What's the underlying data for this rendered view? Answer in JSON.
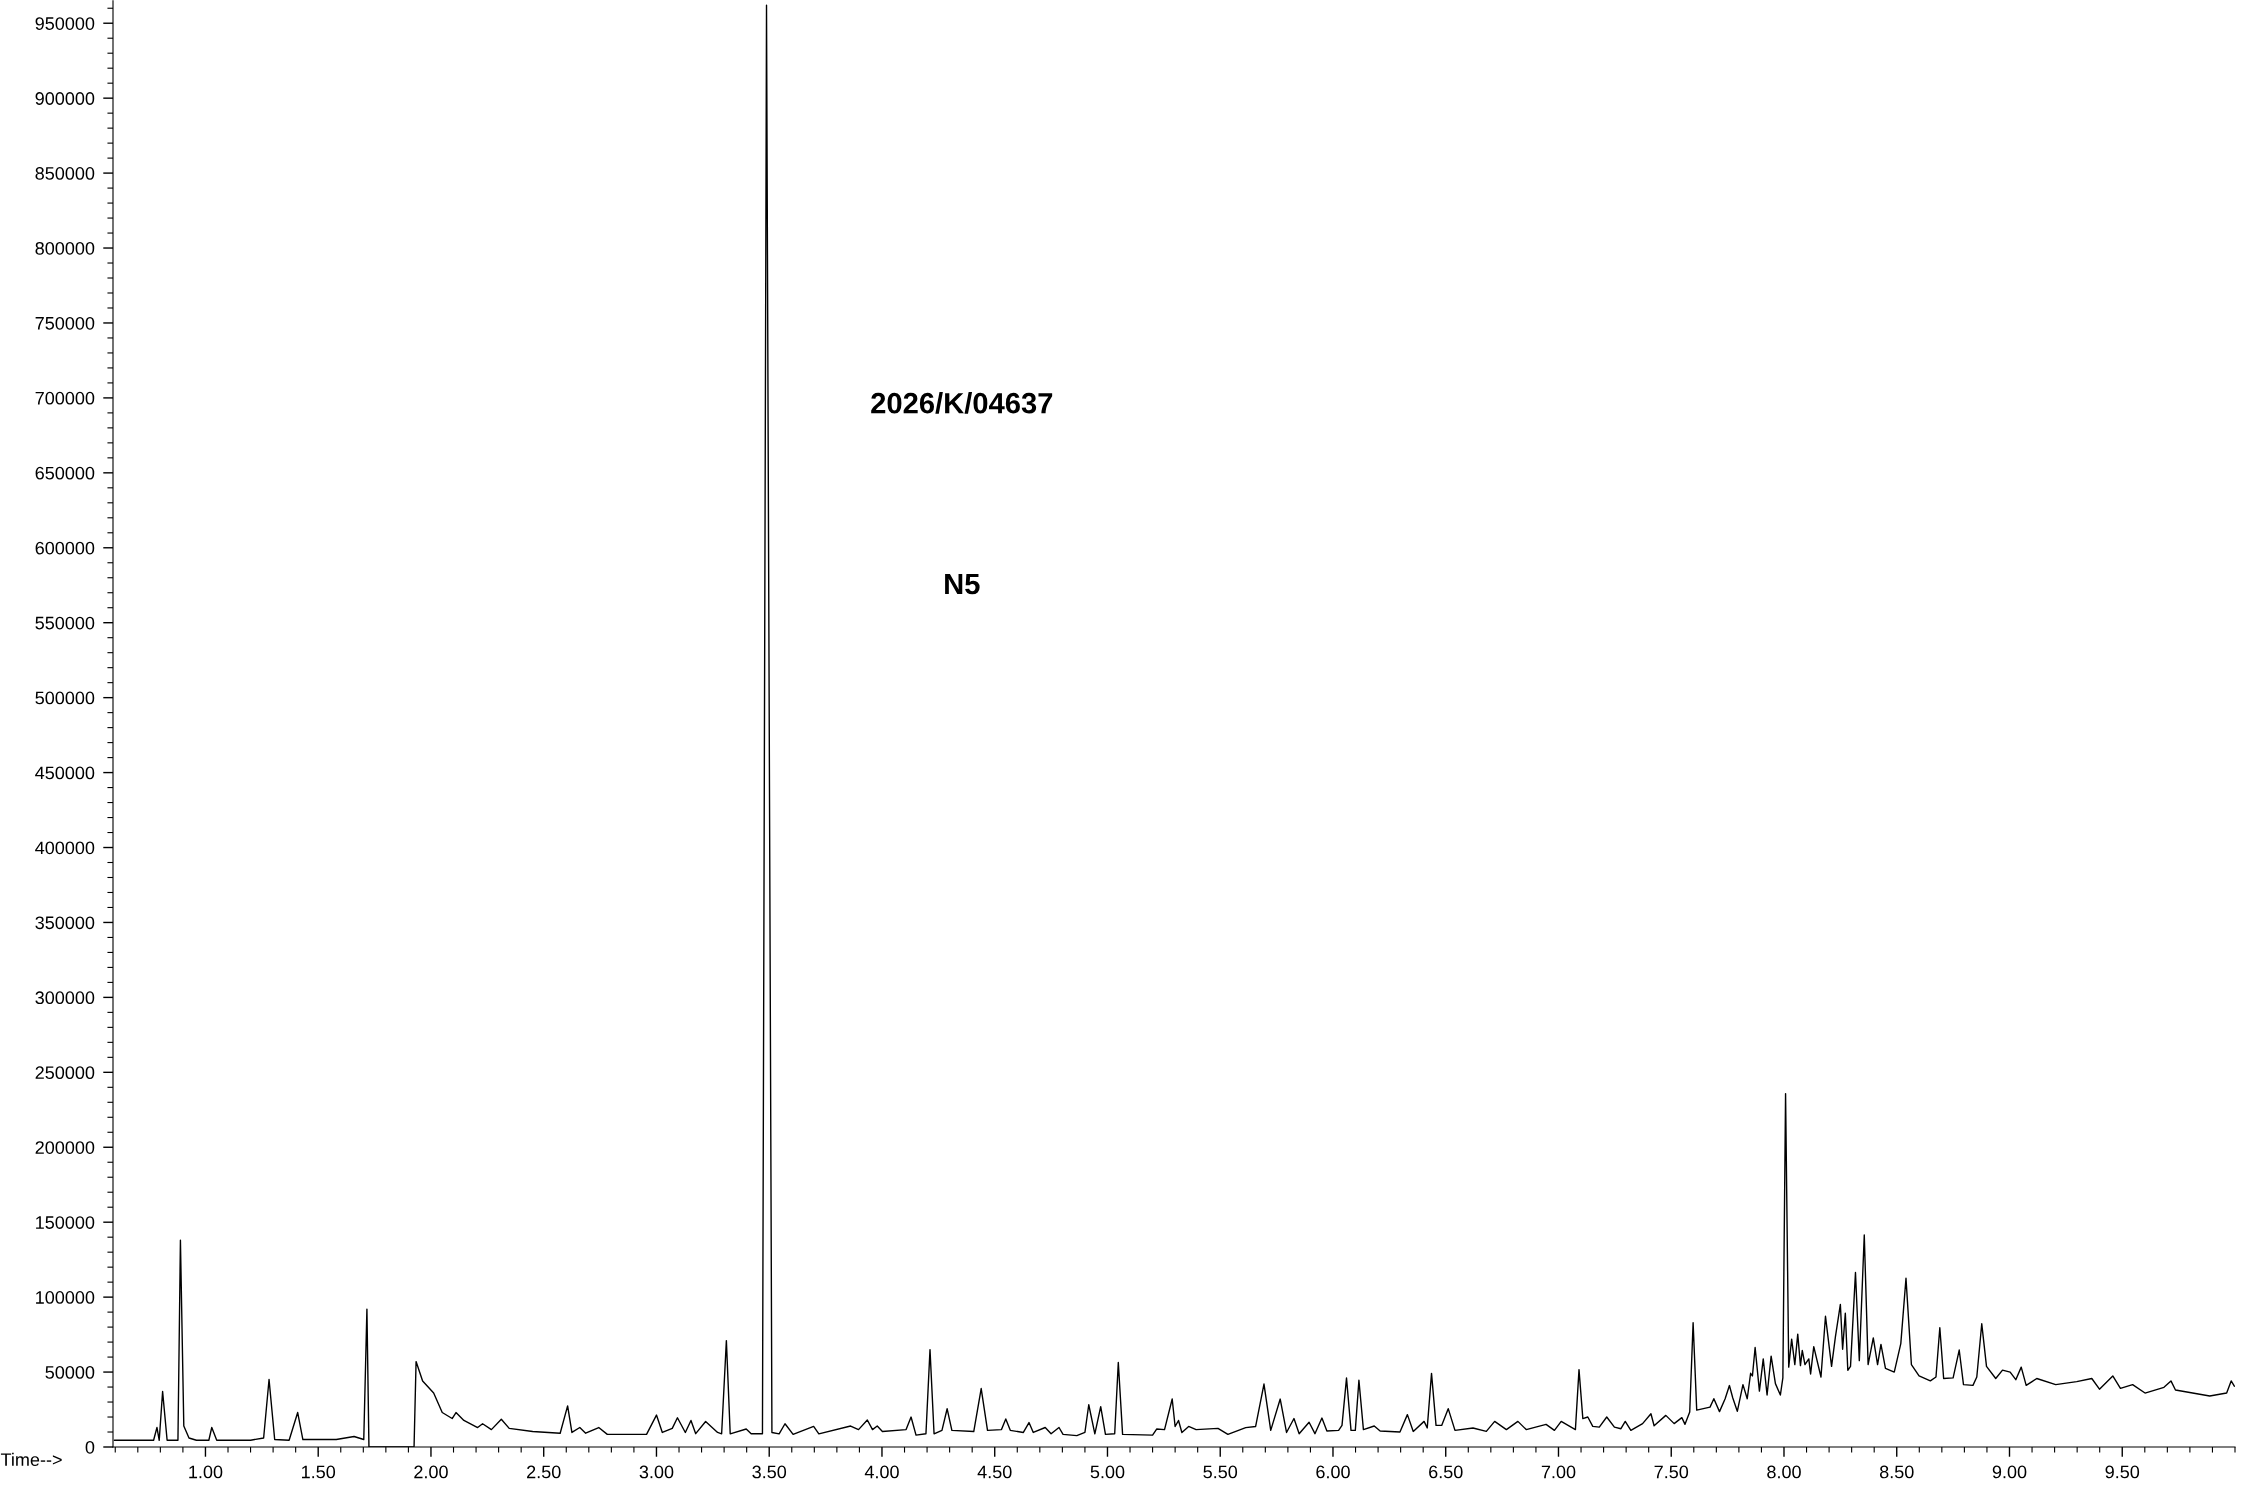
{
  "chart_data": {
    "type": "line",
    "xlabel": "Time-->",
    "annotations": [
      "2026/K/04637",
      "N5"
    ],
    "xlim": [
      0.59,
      10.0
    ],
    "ylim": [
      0,
      965000
    ],
    "xticks": [
      {
        "value": 1.0,
        "label": "1.00"
      },
      {
        "value": 1.5,
        "label": "1.50"
      },
      {
        "value": 2.0,
        "label": "2.00"
      },
      {
        "value": 2.5,
        "label": "2.50"
      },
      {
        "value": 3.0,
        "label": "3.00"
      },
      {
        "value": 3.5,
        "label": "3.50"
      },
      {
        "value": 4.0,
        "label": "4.00"
      },
      {
        "value": 4.5,
        "label": "4.50"
      },
      {
        "value": 5.0,
        "label": "5.00"
      },
      {
        "value": 5.5,
        "label": "5.50"
      },
      {
        "value": 6.0,
        "label": "6.00"
      },
      {
        "value": 6.5,
        "label": "6.50"
      },
      {
        "value": 7.0,
        "label": "7.00"
      },
      {
        "value": 7.5,
        "label": "7.50"
      },
      {
        "value": 8.0,
        "label": "8.00"
      },
      {
        "value": 8.5,
        "label": "8.50"
      },
      {
        "value": 9.0,
        "label": "9.00"
      },
      {
        "value": 9.5,
        "label": "9.50"
      }
    ],
    "yticks": [
      0,
      50000,
      100000,
      150000,
      200000,
      250000,
      300000,
      350000,
      400000,
      450000,
      500000,
      550000,
      600000,
      650000,
      700000,
      750000,
      800000,
      850000,
      900000,
      950000
    ],
    "grid": false,
    "marker": "none",
    "line_style": "solid",
    "series": [
      {
        "color": "#000000",
        "x": [
          0.596,
          0.77,
          0.785,
          0.795,
          0.81,
          0.83,
          0.878,
          0.889,
          0.904,
          0.927,
          0.96,
          1.015,
          1.028,
          1.05,
          1.2,
          1.258,
          1.282,
          1.307,
          1.371,
          1.409,
          1.432,
          1.58,
          1.659,
          1.702,
          1.716,
          1.725,
          1.925,
          1.934,
          1.963,
          2.012,
          2.05,
          2.094,
          2.111,
          2.146,
          2.207,
          2.229,
          2.268,
          2.312,
          2.347,
          2.451,
          2.573,
          2.606,
          2.625,
          2.66,
          2.686,
          2.744,
          2.782,
          2.956,
          3.0,
          3.026,
          3.07,
          3.093,
          3.128,
          3.153,
          3.174,
          3.218,
          3.271,
          3.289,
          3.31,
          3.327,
          3.398,
          3.42,
          3.47,
          3.488,
          3.512,
          3.544,
          3.57,
          3.606,
          3.697,
          3.72,
          3.861,
          3.896,
          3.935,
          3.958,
          3.979,
          4.002,
          4.107,
          4.129,
          4.151,
          4.195,
          4.213,
          4.231,
          4.266,
          4.289,
          4.31,
          4.407,
          4.44,
          4.468,
          4.53,
          4.549,
          4.569,
          4.627,
          4.652,
          4.671,
          4.724,
          4.75,
          4.785,
          4.803,
          4.864,
          4.9,
          4.917,
          4.944,
          4.97,
          4.991,
          5.032,
          5.048,
          5.067,
          5.2,
          5.218,
          5.253,
          5.287,
          5.3,
          5.315,
          5.33,
          5.36,
          5.393,
          5.49,
          5.534,
          5.613,
          5.657,
          5.694,
          5.724,
          5.766,
          5.794,
          5.827,
          5.85,
          5.894,
          5.92,
          5.951,
          5.973,
          6.025,
          6.04,
          6.06,
          6.08,
          6.099,
          6.115,
          6.135,
          6.183,
          6.209,
          6.297,
          6.33,
          6.356,
          6.404,
          6.418,
          6.437,
          6.457,
          6.482,
          6.511,
          6.541,
          6.621,
          6.68,
          6.717,
          6.769,
          6.82,
          6.857,
          6.945,
          6.982,
          7.012,
          7.075,
          7.091,
          7.108,
          7.13,
          7.152,
          7.181,
          7.214,
          7.248,
          7.277,
          7.296,
          7.321,
          7.373,
          7.41,
          7.424,
          7.476,
          7.513,
          7.547,
          7.561,
          7.582,
          7.597,
          7.613,
          7.672,
          7.689,
          7.714,
          7.739,
          7.758,
          7.773,
          7.793,
          7.818,
          7.837,
          7.852,
          7.86,
          7.872,
          7.891,
          7.908,
          7.925,
          7.943,
          7.962,
          7.984,
          7.995,
          8.007,
          8.021,
          8.034,
          8.048,
          8.061,
          8.073,
          8.081,
          8.093,
          8.11,
          8.118,
          8.132,
          8.164,
          8.184,
          8.211,
          8.228,
          8.25,
          8.26,
          8.272,
          8.283,
          8.295,
          8.317,
          8.334,
          8.356,
          8.373,
          8.396,
          8.415,
          8.43,
          8.45,
          8.489,
          8.518,
          8.541,
          8.565,
          8.599,
          8.649,
          8.674,
          8.691,
          8.708,
          8.75,
          8.777,
          8.796,
          8.838,
          8.855,
          8.877,
          8.898,
          8.939,
          8.969,
          9.003,
          9.028,
          9.052,
          9.074,
          9.121,
          9.205,
          9.298,
          9.365,
          9.399,
          9.458,
          9.492,
          9.546,
          9.601,
          9.685,
          9.716,
          9.736,
          9.888,
          9.963,
          9.983,
          9.997
        ],
        "values": [
          4500,
          4500,
          13000,
          4500,
          37000,
          4500,
          4500,
          138000,
          14000,
          6000,
          4500,
          4500,
          13000,
          4500,
          4500,
          6000,
          45000,
          5000,
          4500,
          23000,
          5000,
          5000,
          7000,
          5000,
          92000,
          0,
          0,
          57000,
          44000,
          36000,
          23000,
          19000,
          23000,
          17700,
          13000,
          15500,
          11600,
          18500,
          12400,
          10300,
          9200,
          27400,
          9700,
          13000,
          9200,
          13000,
          8400,
          8400,
          21300,
          9700,
          12400,
          19500,
          9700,
          17700,
          8900,
          17000,
          9700,
          8800,
          71000,
          8800,
          12000,
          8800,
          8800,
          962000,
          9700,
          8800,
          15500,
          8400,
          13700,
          8800,
          14000,
          11600,
          18000,
          11600,
          14000,
          10300,
          11600,
          20000,
          7900,
          8800,
          65000,
          8800,
          11100,
          25500,
          11100,
          10300,
          39000,
          11100,
          11600,
          18700,
          11100,
          9700,
          16300,
          9700,
          13000,
          8800,
          13000,
          8400,
          7600,
          9700,
          28200,
          8800,
          26900,
          8400,
          8800,
          56400,
          8400,
          7900,
          12000,
          11600,
          32000,
          13700,
          17700,
          9700,
          13700,
          11600,
          12400,
          8400,
          12900,
          13700,
          42000,
          11100,
          32000,
          9700,
          19000,
          8800,
          16500,
          8900,
          19300,
          10700,
          11100,
          14400,
          46000,
          11100,
          11100,
          44500,
          11600,
          14000,
          10700,
          10000,
          21600,
          10400,
          17100,
          12700,
          49100,
          14400,
          14400,
          25600,
          11100,
          12700,
          10400,
          17100,
          11600,
          17100,
          11600,
          15100,
          11100,
          17100,
          11600,
          51600,
          18900,
          20000,
          13800,
          13300,
          20000,
          13300,
          12200,
          17100,
          11100,
          15600,
          22200,
          14200,
          21100,
          15600,
          19600,
          15100,
          23300,
          82900,
          24600,
          26600,
          32200,
          23600,
          32200,
          41000,
          32700,
          23800,
          41600,
          32200,
          49200,
          47400,
          66400,
          37300,
          58800,
          34700,
          60600,
          42300,
          34700,
          46100,
          235800,
          53300,
          72000,
          55000,
          75300,
          54300,
          64400,
          55000,
          58800,
          48700,
          67000,
          46700,
          87200,
          53800,
          73500,
          95100,
          65200,
          89300,
          51200,
          53800,
          116400,
          57600,
          141500,
          55000,
          72800,
          55000,
          68500,
          52500,
          50000,
          69000,
          112600,
          55000,
          47400,
          44100,
          46700,
          79600,
          45700,
          46100,
          64700,
          41600,
          41100,
          46700,
          82200,
          53800,
          45700,
          51300,
          50000,
          44900,
          53300,
          41100,
          45700,
          41600,
          43600,
          45700,
          38600,
          47400,
          39100,
          41600,
          36000,
          39800,
          44100,
          38000,
          34000,
          36000,
          44100,
          40600
        ]
      }
    ]
  }
}
